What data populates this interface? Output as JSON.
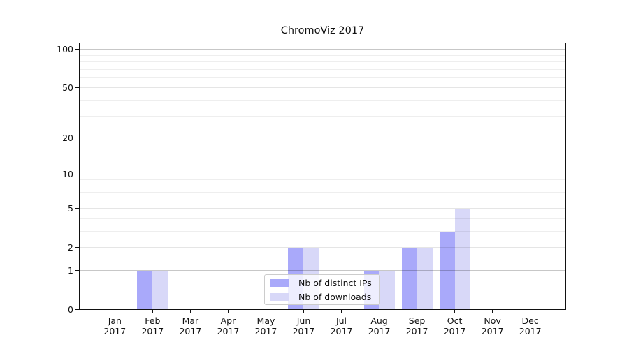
{
  "chart_data": {
    "type": "bar",
    "title": "ChromoViz 2017",
    "categories": [
      "Jan",
      "Feb",
      "Mar",
      "Apr",
      "May",
      "Jun",
      "Jul",
      "Aug",
      "Sep",
      "Oct",
      "Nov",
      "Dec"
    ],
    "category_year": "2017",
    "series": [
      {
        "name": "Nb of distinct IPs",
        "color": "#a9a9fa",
        "values": [
          0,
          1,
          0,
          0,
          0,
          2,
          0,
          1,
          2,
          3,
          0,
          0
        ]
      },
      {
        "name": "Nb of downloads",
        "color": "#d8d8f8",
        "values": [
          0,
          1,
          0,
          0,
          0,
          2,
          0,
          1,
          2,
          5,
          0,
          0
        ]
      }
    ],
    "yscale": "log1p",
    "ylim": [
      0,
      113
    ],
    "yticks": {
      "values": [
        0,
        1,
        2,
        5,
        10,
        20,
        50,
        100
      ],
      "labels": [
        "0",
        "1",
        "2",
        "5",
        "10",
        "20",
        "50",
        "100"
      ]
    },
    "minor_yticks": [
      3,
      4,
      6,
      7,
      8,
      9,
      30,
      40,
      60,
      70,
      80,
      90
    ],
    "grid": "horizontal major+minor, drawn above bars",
    "legend_position": "inside lower-center"
  }
}
